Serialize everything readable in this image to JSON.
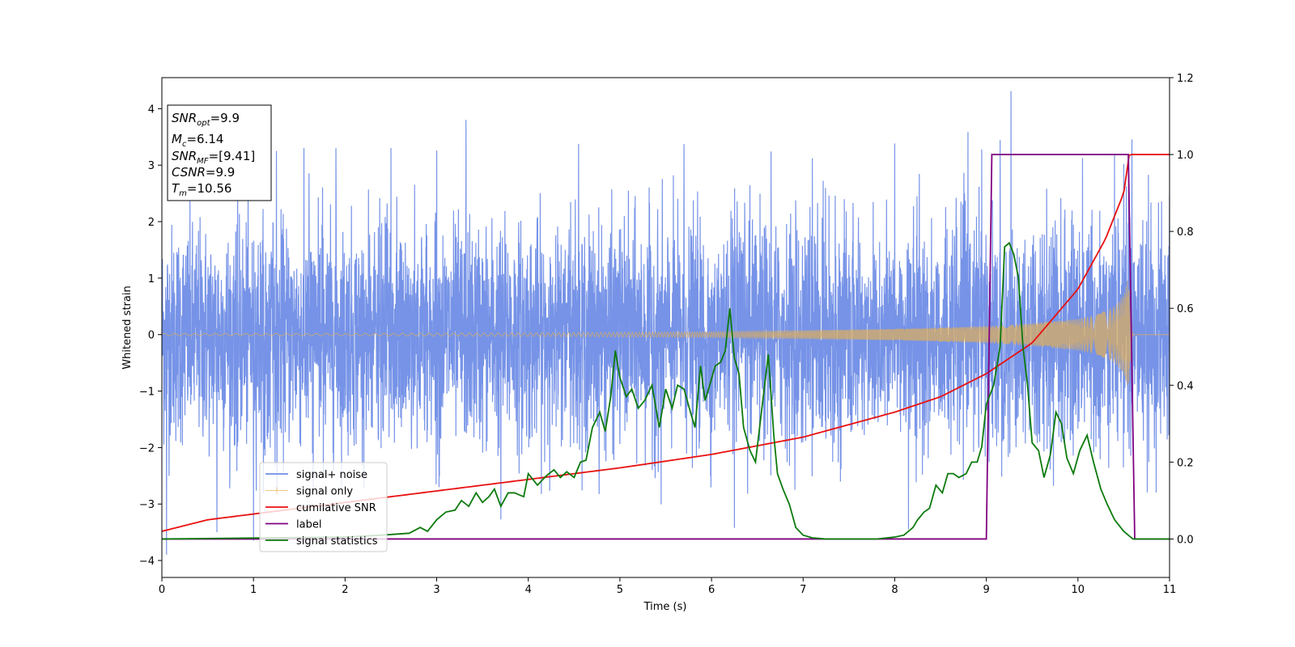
{
  "chart_data": {
    "type": "line",
    "xlabel": "Time (s)",
    "ylabel": "Whitened strain",
    "xlim": [
      0,
      11
    ],
    "ylim": [
      -4.3,
      4.55
    ],
    "y2lim": [
      -0.1,
      1.2
    ],
    "xticks": [
      "0",
      "1",
      "2",
      "3",
      "4",
      "5",
      "6",
      "7",
      "8",
      "9",
      "10",
      "11"
    ],
    "yticks": [
      "−4",
      "−3",
      "−2",
      "−1",
      "0",
      "1",
      "2",
      "3",
      "4"
    ],
    "y2ticks": [
      "0.0",
      "0.2",
      "0.4",
      "0.6",
      "0.8",
      "1.0",
      "1.2"
    ],
    "legend_position": "lower-left",
    "annotation": {
      "snr_opt_symbol": "SNR",
      "snr_opt_sub": "opt",
      "snr_opt_value": "=9.9",
      "mc_symbol": "M",
      "mc_sub": "c",
      "mc_value": "=6.14",
      "snr_mf_symbol": "SNR",
      "snr_mf_sub": "MF",
      "snr_mf_value": "=[9.41]",
      "csnr_symbol": "CSNR",
      "csnr_value": "=9.9",
      "tm_symbol": "T",
      "tm_sub": "m",
      "tm_value": "=10.56"
    },
    "series": [
      {
        "name": "signal+ noise",
        "axis": "left",
        "color": "#6f8de6",
        "description_of_data": "dense noise, approx. Gaussian, typical range ±2.5, peaks",
        "x": [
          0.05,
          0.6,
          1.0,
          1.25,
          1.55,
          1.9,
          2.5,
          3.0,
          3.32,
          3.7,
          4.55,
          5.45,
          5.7,
          6.25,
          6.65,
          7.1,
          8.0,
          8.15,
          8.8,
          8.95,
          9.15,
          9.27,
          10.05,
          10.4,
          10.5,
          10.59,
          11.0
        ],
        "y": [
          -3.9,
          -3.5,
          -3.65,
          3.25,
          3.3,
          3.3,
          3.3,
          3.25,
          3.8,
          -3.3,
          3.4,
          -3.05,
          3.35,
          -3.45,
          3.25,
          3.15,
          3.3,
          -3.4,
          3.45,
          3.4,
          3.3,
          4.18,
          3.4,
          3.4,
          3.55,
          3.5,
          2.5
        ]
      },
      {
        "name": "signal only",
        "axis": "left",
        "color": "#e8b04d",
        "description_of_data": "chirp envelope amplitude",
        "x": [
          0,
          2,
          4,
          6,
          8,
          9,
          9.5,
          10,
          10.2,
          10.4,
          10.5,
          10.55,
          10.58,
          10.6,
          11
        ],
        "y": [
          0.02,
          0.02,
          0.03,
          0.05,
          0.1,
          0.15,
          0.2,
          0.28,
          0.35,
          0.5,
          0.7,
          1.0,
          0.3,
          0.0,
          0.0
        ]
      },
      {
        "name": "cumilative SNR",
        "axis": "right",
        "color": "#e8100f",
        "x": [
          0,
          0.5,
          1,
          2,
          3,
          4,
          5,
          6,
          7,
          8,
          8.5,
          9,
          9.5,
          10,
          10.3,
          10.5,
          10.56,
          11
        ],
        "y": [
          0.02,
          0.05,
          0.065,
          0.095,
          0.125,
          0.155,
          0.185,
          0.22,
          0.265,
          0.33,
          0.37,
          0.43,
          0.51,
          0.65,
          0.78,
          0.9,
          1.0,
          1.0
        ]
      },
      {
        "name": "label",
        "axis": "right",
        "color": "#800080",
        "x": [
          0,
          9.0,
          9.06,
          10.55,
          10.62,
          11
        ],
        "y": [
          0,
          0,
          1,
          1,
          0,
          0
        ]
      },
      {
        "name": "signal statistics",
        "axis": "right",
        "color": "#0d7a0d",
        "x": [
          0,
          2.0,
          2.4,
          2.7,
          2.82,
          2.9,
          3.0,
          3.1,
          3.2,
          3.27,
          3.35,
          3.43,
          3.5,
          3.57,
          3.63,
          3.7,
          3.78,
          3.85,
          3.95,
          4.0,
          4.1,
          4.2,
          4.28,
          4.35,
          4.42,
          4.5,
          4.57,
          4.63,
          4.7,
          4.78,
          4.84,
          4.9,
          4.95,
          5.0,
          5.07,
          5.13,
          5.2,
          5.27,
          5.35,
          5.43,
          5.5,
          5.57,
          5.63,
          5.7,
          5.77,
          5.82,
          5.88,
          5.93,
          5.98,
          6.04,
          6.1,
          6.15,
          6.2,
          6.25,
          6.3,
          6.35,
          6.42,
          6.48,
          6.55,
          6.62,
          6.68,
          6.72,
          6.78,
          6.85,
          6.92,
          7.0,
          7.1,
          7.25,
          7.5,
          7.8,
          8.0,
          8.1,
          8.2,
          8.25,
          8.32,
          8.38,
          8.45,
          8.52,
          8.58,
          8.64,
          8.7,
          8.78,
          8.84,
          8.9,
          8.95,
          9.0,
          9.08,
          9.15,
          9.2,
          9.25,
          9.3,
          9.35,
          9.4,
          9.45,
          9.5,
          9.57,
          9.63,
          9.7,
          9.76,
          9.82,
          9.88,
          9.95,
          10.02,
          10.1,
          10.17,
          10.25,
          10.32,
          10.4,
          10.5,
          10.6,
          11.0
        ],
        "y": [
          0.0,
          0.005,
          0.01,
          0.015,
          0.03,
          0.02,
          0.05,
          0.07,
          0.075,
          0.1,
          0.085,
          0.12,
          0.095,
          0.11,
          0.13,
          0.085,
          0.12,
          0.12,
          0.11,
          0.17,
          0.14,
          0.165,
          0.18,
          0.16,
          0.175,
          0.16,
          0.2,
          0.205,
          0.29,
          0.33,
          0.28,
          0.37,
          0.49,
          0.42,
          0.37,
          0.39,
          0.34,
          0.36,
          0.4,
          0.29,
          0.39,
          0.34,
          0.4,
          0.39,
          0.33,
          0.29,
          0.45,
          0.36,
          0.4,
          0.45,
          0.46,
          0.49,
          0.6,
          0.47,
          0.43,
          0.29,
          0.23,
          0.2,
          0.34,
          0.48,
          0.27,
          0.17,
          0.13,
          0.09,
          0.03,
          0.01,
          0.003,
          0.0,
          0.0,
          0.0,
          0.005,
          0.01,
          0.03,
          0.05,
          0.07,
          0.08,
          0.14,
          0.12,
          0.17,
          0.17,
          0.16,
          0.17,
          0.2,
          0.2,
          0.24,
          0.35,
          0.4,
          0.5,
          0.76,
          0.77,
          0.74,
          0.68,
          0.5,
          0.4,
          0.25,
          0.23,
          0.16,
          0.22,
          0.33,
          0.3,
          0.21,
          0.17,
          0.23,
          0.27,
          0.2,
          0.13,
          0.09,
          0.05,
          0.02,
          0.0,
          0.0
        ]
      }
    ]
  }
}
